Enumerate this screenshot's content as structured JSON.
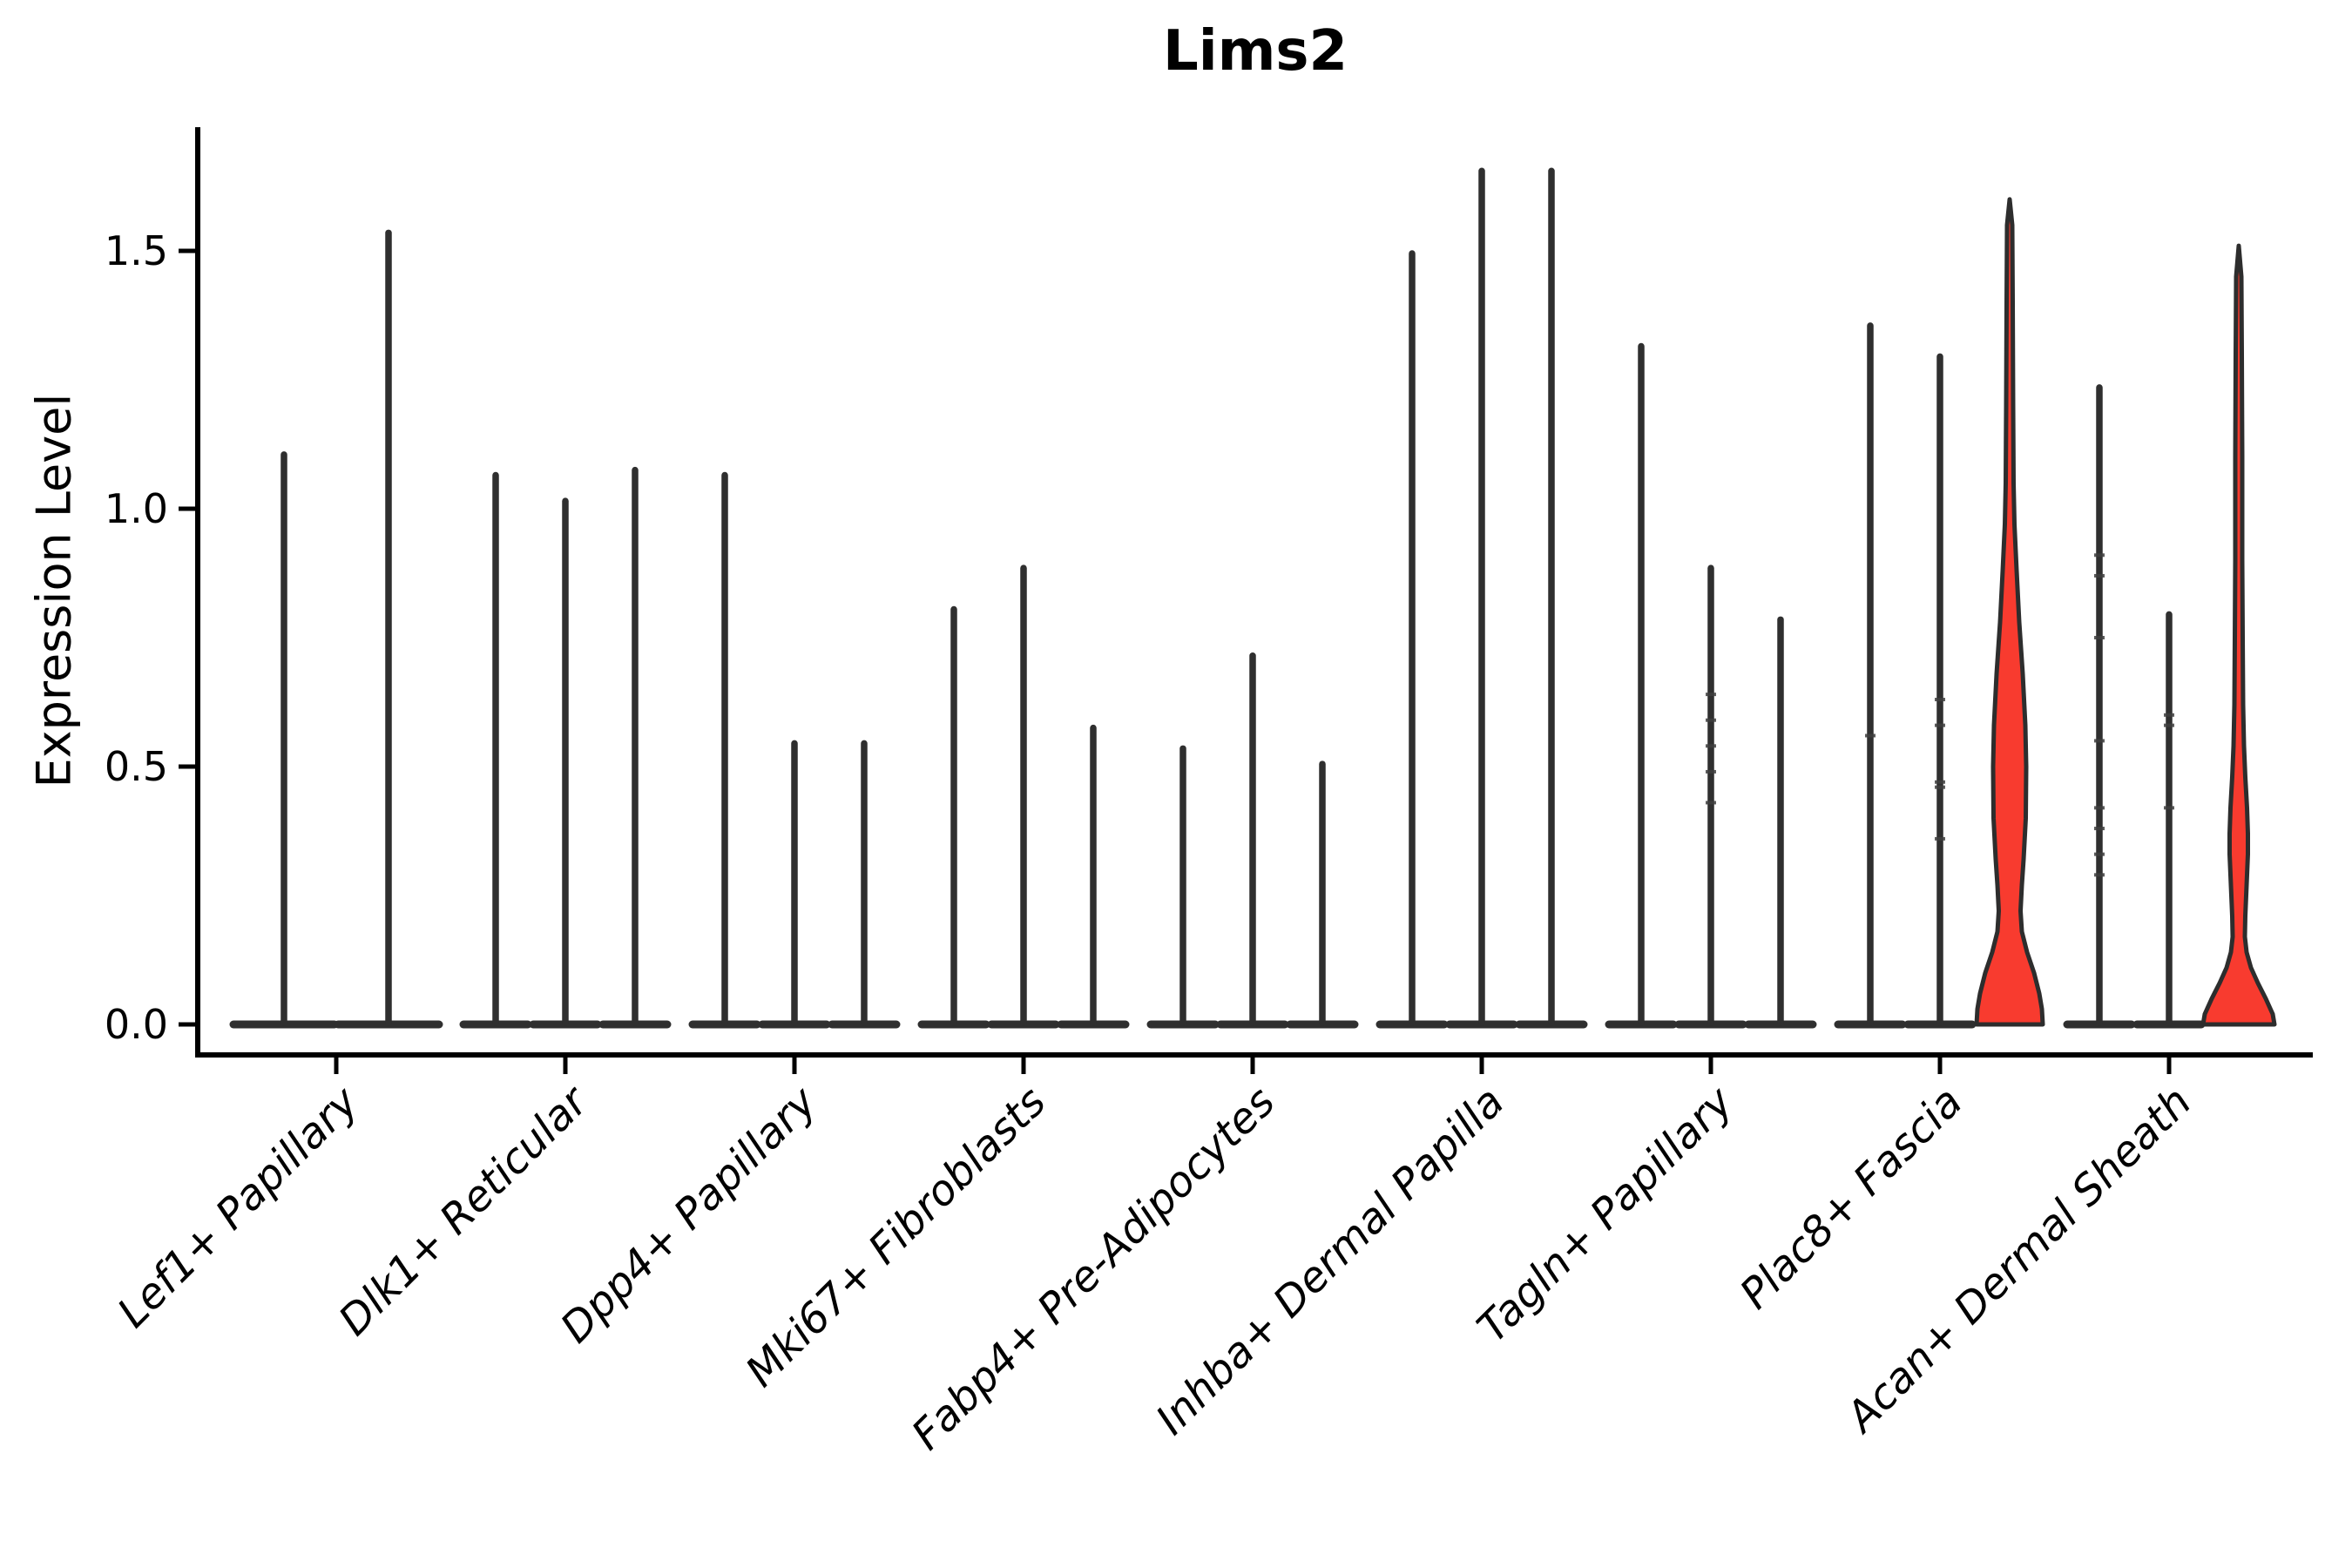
{
  "chart_data": {
    "type": "violin",
    "title": "Lims2",
    "ylabel": "Expression Level",
    "xlabel": "",
    "ylim": [
      0,
      1.74
    ],
    "yticks": [
      "0.0",
      "0.5",
      "1.0",
      "1.5"
    ],
    "ytick_values": [
      0.0,
      0.5,
      1.0,
      1.5
    ],
    "grid": "off",
    "legend": "none",
    "x_label_rotation_deg": 45,
    "x_labels_italic": true,
    "categories": [
      "Lef1+ Papillary",
      "Dlk1+ Reticular",
      "Dpp4+ Papillary",
      "Mki67+ Fibroblasts",
      "Fabp4+ Pre-Adipocytes",
      "Inhba+ Dermal Papilla",
      "Tagln+ Papillary",
      "Plac8+ Fascia",
      "Acan+ Dermal Sheath"
    ],
    "groups": [
      {
        "category": "Lef1+ Papillary",
        "violins": [
          {
            "offset": -60,
            "max": 1.11,
            "base_halfwidth": 61,
            "fill": "none",
            "points": []
          },
          {
            "offset": 60,
            "max": 1.54,
            "base_halfwidth": 61,
            "fill": "none",
            "points": []
          }
        ]
      },
      {
        "category": "Dlk1+ Reticular",
        "violins": [
          {
            "offset": -80,
            "max": 1.07,
            "base_halfwidth": 40,
            "fill": "none",
            "points": []
          },
          {
            "offset": 0,
            "max": 1.02,
            "base_halfwidth": 40,
            "fill": "none",
            "points": []
          },
          {
            "offset": 80,
            "max": 1.08,
            "base_halfwidth": 40,
            "fill": "none",
            "points": []
          }
        ]
      },
      {
        "category": "Dpp4+ Papillary",
        "violins": [
          {
            "offset": -80,
            "max": 1.07,
            "base_halfwidth": 40,
            "fill": "none",
            "points": []
          },
          {
            "offset": 0,
            "max": 0.55,
            "base_halfwidth": 40,
            "fill": "none",
            "points": []
          },
          {
            "offset": 80,
            "max": 0.55,
            "base_halfwidth": 40,
            "fill": "none",
            "points": []
          }
        ]
      },
      {
        "category": "Mki67+ Fibroblasts",
        "violins": [
          {
            "offset": -80,
            "max": 0.81,
            "base_halfwidth": 40,
            "fill": "none",
            "points": []
          },
          {
            "offset": 0,
            "max": 0.89,
            "base_halfwidth": 40,
            "fill": "none",
            "points": []
          },
          {
            "offset": 80,
            "max": 0.58,
            "base_halfwidth": 40,
            "fill": "none",
            "points": []
          }
        ]
      },
      {
        "category": "Fabp4+ Pre-Adipocytes",
        "violins": [
          {
            "offset": -80,
            "max": 0.54,
            "base_halfwidth": 40,
            "fill": "none",
            "points": []
          },
          {
            "offset": 0,
            "max": 0.72,
            "base_halfwidth": 40,
            "fill": "none",
            "points": []
          },
          {
            "offset": 80,
            "max": 0.51,
            "base_halfwidth": 40,
            "fill": "none",
            "points": []
          }
        ]
      },
      {
        "category": "Inhba+ Dermal Papilla",
        "violins": [
          {
            "offset": -80,
            "max": 1.5,
            "base_halfwidth": 40,
            "fill": "none",
            "points": []
          },
          {
            "offset": 0,
            "max": 1.66,
            "base_halfwidth": 40,
            "fill": "none",
            "points": []
          },
          {
            "offset": 80,
            "max": 1.66,
            "base_halfwidth": 40,
            "fill": "none",
            "points": []
          }
        ]
      },
      {
        "category": "Tagln+ Papillary",
        "violins": [
          {
            "offset": -80,
            "max": 1.32,
            "base_halfwidth": 40,
            "fill": "none",
            "points": []
          },
          {
            "offset": 0,
            "max": 0.89,
            "base_halfwidth": 40,
            "fill": "none",
            "points": [
              0.64,
              0.59,
              0.54,
              0.49,
              0.43
            ]
          },
          {
            "offset": 80,
            "max": 0.79,
            "base_halfwidth": 40,
            "fill": "none",
            "points": []
          }
        ]
      },
      {
        "category": "Plac8+ Fascia",
        "violins": [
          {
            "offset": -80,
            "max": 1.36,
            "base_halfwidth": 40,
            "fill": "none",
            "points": [
              0.56
            ]
          },
          {
            "offset": 0,
            "max": 1.3,
            "base_halfwidth": 40,
            "fill": "none",
            "points": [
              0.63,
              0.58,
              0.47,
              0.46,
              0.36
            ]
          },
          {
            "offset": 80,
            "max": 1.6,
            "base_halfwidth": 40,
            "fill": "highlight",
            "profile": [
              [
                0,
                38
              ],
              [
                0.03,
                37
              ],
              [
                0.06,
                34
              ],
              [
                0.1,
                28
              ],
              [
                0.14,
                20
              ],
              [
                0.18,
                14
              ],
              [
                0.22,
                12.5
              ],
              [
                0.27,
                14
              ],
              [
                0.32,
                16
              ],
              [
                0.4,
                18.5
              ],
              [
                0.5,
                19
              ],
              [
                0.58,
                18
              ],
              [
                0.68,
                15
              ],
              [
                0.78,
                11
              ],
              [
                0.88,
                8
              ],
              [
                0.97,
                5.5
              ],
              [
                1.05,
                4.5
              ],
              [
                1.2,
                4
              ],
              [
                1.4,
                3.5
              ],
              [
                1.55,
                3
              ],
              [
                1.6,
                0
              ]
            ],
            "points": []
          }
        ]
      },
      {
        "category": "Acan+ Dermal Sheath",
        "violins": [
          {
            "offset": -80,
            "max": 1.24,
            "base_halfwidth": 40,
            "fill": "none",
            "points": [
              0.91,
              0.87,
              0.75,
              0.55,
              0.42,
              0.38,
              0.33,
              0.29
            ]
          },
          {
            "offset": 0,
            "max": 0.8,
            "base_halfwidth": 40,
            "fill": "none",
            "points": [
              0.6,
              0.58,
              0.42
            ]
          },
          {
            "offset": 80,
            "max": 1.51,
            "base_halfwidth": 40,
            "fill": "highlight",
            "profile": [
              [
                0,
                41
              ],
              [
                0.02,
                39
              ],
              [
                0.05,
                31
              ],
              [
                0.08,
                22
              ],
              [
                0.11,
                14
              ],
              [
                0.14,
                9
              ],
              [
                0.17,
                7
              ],
              [
                0.21,
                7.5
              ],
              [
                0.27,
                9
              ],
              [
                0.33,
                10.5
              ],
              [
                0.37,
                10.5
              ],
              [
                0.42,
                9.5
              ],
              [
                0.48,
                7.5
              ],
              [
                0.54,
                6
              ],
              [
                0.62,
                5
              ],
              [
                0.75,
                4.5
              ],
              [
                0.9,
                4
              ],
              [
                1.1,
                4
              ],
              [
                1.3,
                3.5
              ],
              [
                1.45,
                3
              ],
              [
                1.51,
                0
              ]
            ],
            "points": []
          }
        ]
      }
    ],
    "colors": {
      "highlight_fill": "#f83b2f",
      "violin_outline": "#2d2d2d",
      "spike": "#2f2f2f",
      "point_mark": "#3f3f3f",
      "axis": "#000000",
      "background": "#ffffff"
    }
  }
}
